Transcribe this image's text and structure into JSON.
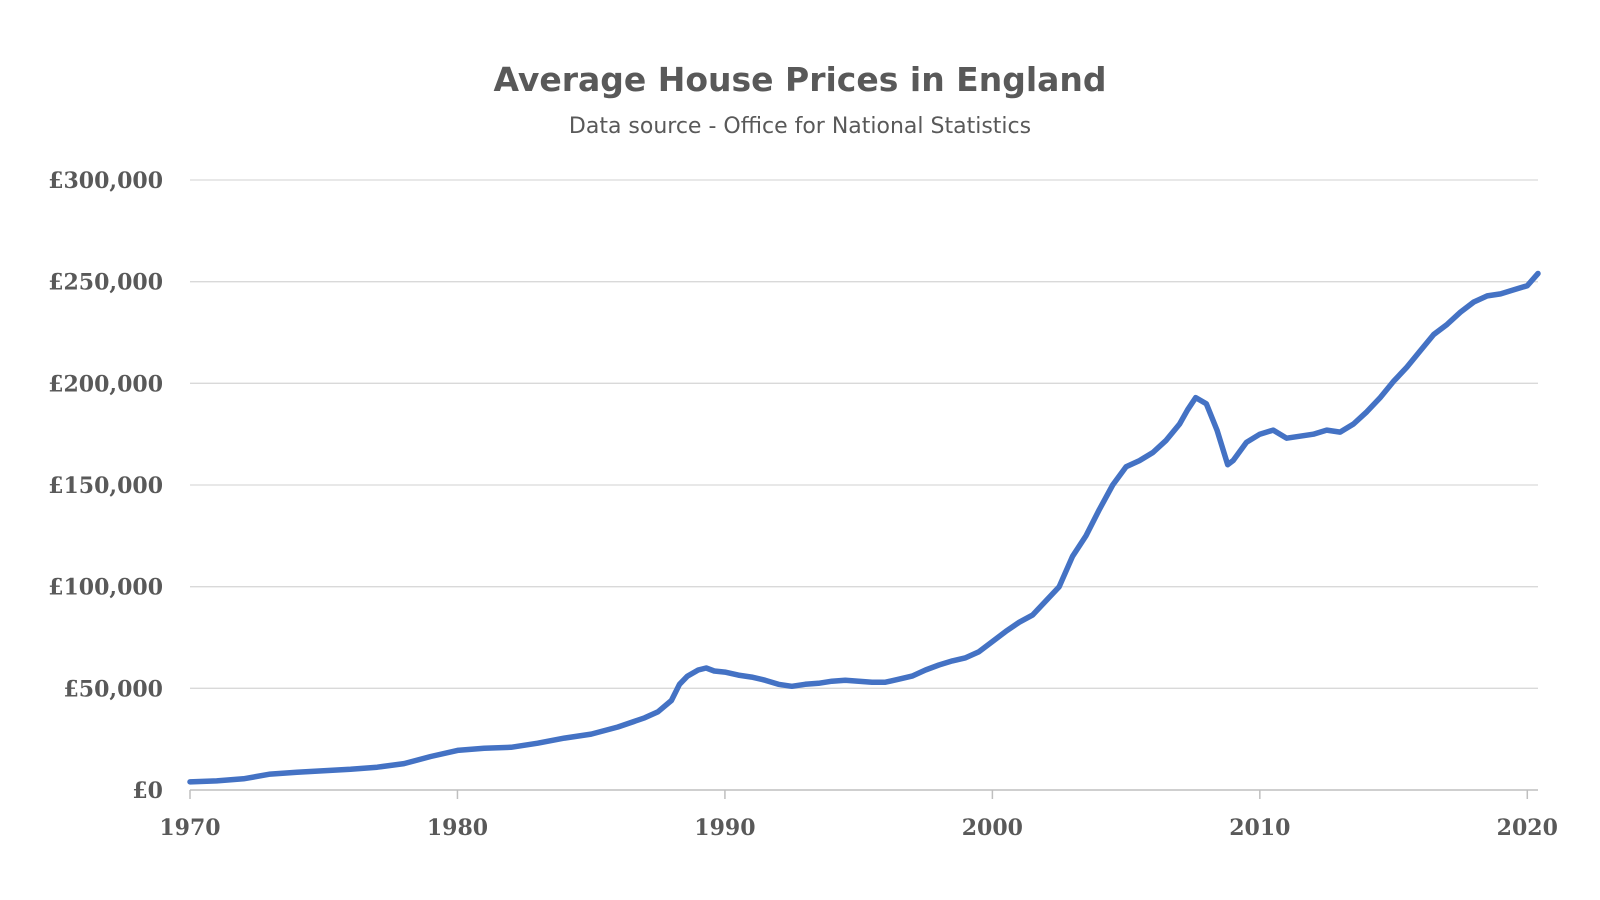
{
  "chart_data": {
    "type": "line",
    "title": "Average House Prices in England",
    "subtitle": "Data source - Office for National Statistics",
    "xlabel": "",
    "ylabel": "",
    "xlim": [
      1970,
      2020.4
    ],
    "ylim": [
      0,
      300000
    ],
    "x_ticks": [
      1970,
      1980,
      1990,
      2000,
      2010,
      2020
    ],
    "x_tick_labels": [
      "1970",
      "1980",
      "1990",
      "2000",
      "2010",
      "2020"
    ],
    "y_ticks": [
      0,
      50000,
      100000,
      150000,
      200000,
      250000,
      300000
    ],
    "y_tick_labels": [
      "£0",
      "£50,000",
      "£100,000",
      "£150,000",
      "£200,000",
      "£250,000",
      "£300,000"
    ],
    "grid": "horizontal",
    "legend": "none",
    "series_color": "#4472c4",
    "grid_color": "#d9d9d9",
    "axis_color": "#bfbfbf",
    "text_color": "#595959",
    "series": [
      {
        "x": [
          1970,
          1971,
          1972,
          1973,
          1974,
          1975,
          1976,
          1977,
          1978,
          1979,
          1980,
          1981,
          1982,
          1983,
          1984,
          1985,
          1986,
          1987,
          1987.5,
          1988,
          1988.3,
          1988.6,
          1989,
          1989.3,
          1989.6,
          1990,
          1990.5,
          1991,
          1991.5,
          1992,
          1992.5,
          1993,
          1993.5,
          1994,
          1994.5,
          1995,
          1995.5,
          1996,
          1996.5,
          1997,
          1997.5,
          1998,
          1998.5,
          1999,
          1999.5,
          2000,
          2000.5,
          2001,
          2001.5,
          2002,
          2002.5,
          2003,
          2003.5,
          2004,
          2004.5,
          2005,
          2005.5,
          2006,
          2006.5,
          2007,
          2007.3,
          2007.6,
          2008,
          2008.4,
          2008.8,
          2009,
          2009.5,
          2010,
          2010.5,
          2011,
          2011.5,
          2012,
          2012.5,
          2013,
          2013.5,
          2014,
          2014.5,
          2015,
          2015.5,
          2016,
          2016.5,
          2017,
          2017.5,
          2018,
          2018.5,
          2019,
          2019.5,
          2020,
          2020.4
        ],
        "y": [
          4000,
          4500,
          5500,
          7800,
          8700,
          9500,
          10200,
          11200,
          13000,
          16500,
          19500,
          20500,
          21000,
          23000,
          25500,
          27500,
          31000,
          35500,
          38500,
          44000,
          52000,
          56000,
          59000,
          60000,
          58500,
          58000,
          56500,
          55500,
          54000,
          52000,
          51000,
          52000,
          52500,
          53500,
          54000,
          53500,
          53000,
          53000,
          54500,
          56000,
          59000,
          61500,
          63500,
          65000,
          68000,
          73000,
          78000,
          82500,
          86000,
          93000,
          100000,
          115000,
          125000,
          138000,
          150000,
          159000,
          162000,
          166000,
          172000,
          180000,
          187000,
          193000,
          190000,
          177000,
          160000,
          162000,
          171000,
          175000,
          177000,
          173000,
          174000,
          175000,
          177000,
          176000,
          180000,
          186000,
          193000,
          201000,
          208000,
          216000,
          224000,
          229000,
          235000,
          240000,
          243000,
          244000,
          246000,
          248000,
          254000
        ]
      }
    ]
  }
}
